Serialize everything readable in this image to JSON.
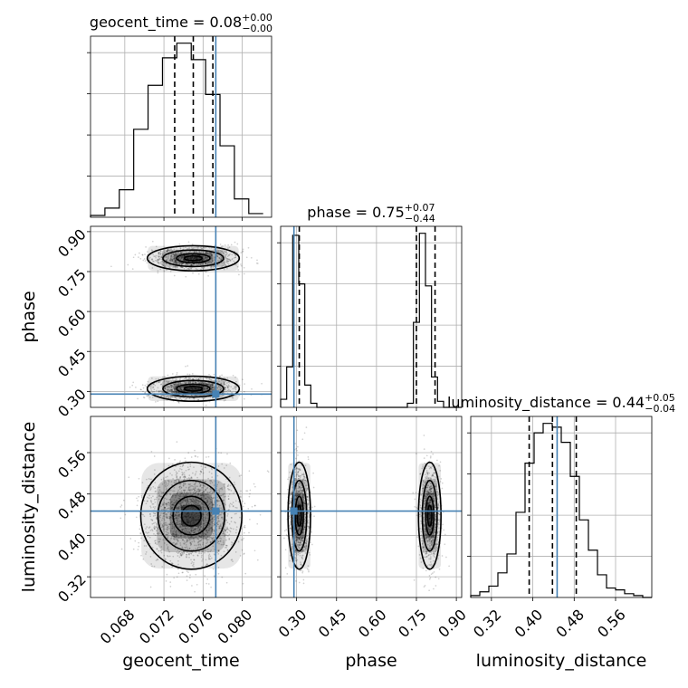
{
  "chart_data": {
    "type": "corner",
    "parameters": [
      {
        "name": "geocent_time",
        "label": "geocent_time",
        "range": [
          0.0645,
          0.083
        ],
        "ticks": [
          "0.068",
          "0.072",
          "0.076",
          "0.080"
        ],
        "title_main": "geocent_time = 0.08",
        "title_plus": "+0.00",
        "title_minus": "−0.00",
        "median": 0.075,
        "q16": 0.0731,
        "q84": 0.077,
        "truth": 0.0773,
        "hist_edges": [
          0.0645,
          0.06597,
          0.06744,
          0.06891,
          0.07038,
          0.07185,
          0.07332,
          0.07479,
          0.07626,
          0.07773,
          0.0792,
          0.08067,
          0.08214
        ],
        "hist_counts": [
          0.01,
          0.05,
          0.15,
          0.48,
          0.72,
          0.87,
          0.95,
          0.86,
          0.67,
          0.39,
          0.1,
          0.02
        ]
      },
      {
        "name": "phase",
        "label": "phase",
        "range": [
          0.24,
          0.92
        ],
        "ticks": [
          "0.30",
          "0.45",
          "0.60",
          "0.75",
          "0.90"
        ],
        "title_main": "phase = 0.75",
        "title_plus": "+0.07",
        "title_minus": "−0.44",
        "median": 0.75,
        "q16": 0.31,
        "q84": 0.82,
        "truth": 0.29,
        "hist_edges": [
          0.24,
          0.2627,
          0.2853,
          0.308,
          0.3307,
          0.3533,
          0.376,
          0.3987,
          0.4213,
          0.444,
          0.4667,
          0.4893,
          0.512,
          0.5347,
          0.5573,
          0.58,
          0.6027,
          0.6253,
          0.648,
          0.6707,
          0.6933,
          0.716,
          0.7387,
          0.7613,
          0.784,
          0.8067,
          0.8293,
          0.852,
          0.8747,
          0.8973,
          0.92
        ],
        "hist_counts": [
          0.04,
          0.2,
          0.85,
          0.61,
          0.11,
          0.02,
          0.0,
          0.0,
          0.0,
          0.0,
          0.0,
          0.0,
          0.0,
          0.0,
          0.0,
          0.0,
          0.0,
          0.0,
          0.0,
          0.0,
          0.0,
          0.02,
          0.42,
          0.86,
          0.6,
          0.15,
          0.03,
          0.0,
          0.0,
          0.0
        ]
      },
      {
        "name": "luminosity_distance",
        "label": "luminosity_distance",
        "range": [
          0.28,
          0.63
        ],
        "ticks": [
          "0.32",
          "0.40",
          "0.48",
          "0.56"
        ],
        "title_main": "luminosity_distance = 0.44",
        "title_plus": "+0.05",
        "title_minus": "−0.04",
        "median": 0.438,
        "q16": 0.393,
        "q84": 0.484,
        "truth": 0.447,
        "hist_edges": [
          0.28,
          0.2975,
          0.315,
          0.3325,
          0.35,
          0.3675,
          0.385,
          0.4025,
          0.42,
          0.4375,
          0.455,
          0.4725,
          0.49,
          0.5075,
          0.525,
          0.5425,
          0.56,
          0.5775,
          0.595,
          0.6125,
          0.63
        ],
        "hist_counts": [
          0.01,
          0.03,
          0.06,
          0.13,
          0.23,
          0.45,
          0.71,
          0.87,
          0.92,
          0.9,
          0.82,
          0.64,
          0.41,
          0.25,
          0.12,
          0.05,
          0.04,
          0.02,
          0.01,
          0.0
        ]
      }
    ],
    "pairs": [
      {
        "x": "geocent_time",
        "y": "phase",
        "truth": [
          0.0773,
          0.29
        ],
        "clusters": [
          {
            "cx": 0.075,
            "cy": 0.8,
            "sx": 0.002,
            "sy": 0.02,
            "weight": 0.5
          },
          {
            "cx": 0.075,
            "cy": 0.31,
            "sx": 0.002,
            "sy": 0.02,
            "weight": 0.5
          }
        ]
      },
      {
        "x": "geocent_time",
        "y": "luminosity_distance",
        "truth": [
          0.0773,
          0.447
        ],
        "clusters": [
          {
            "cx": 0.0748,
            "cy": 0.438,
            "sx": 0.0022,
            "sy": 0.044,
            "weight": 1.0
          }
        ]
      },
      {
        "x": "phase",
        "y": "luminosity_distance",
        "truth": [
          0.29,
          0.447
        ],
        "clusters": [
          {
            "cx": 0.31,
            "cy": 0.438,
            "sx": 0.018,
            "sy": 0.044,
            "weight": 0.5
          },
          {
            "cx": 0.8,
            "cy": 0.438,
            "sx": 0.018,
            "sy": 0.044,
            "weight": 0.5
          }
        ]
      }
    ],
    "colors": {
      "truth": "#4682b4",
      "hist": "#000000",
      "scatter": "#000000",
      "grid": "#b0b0b0"
    }
  }
}
